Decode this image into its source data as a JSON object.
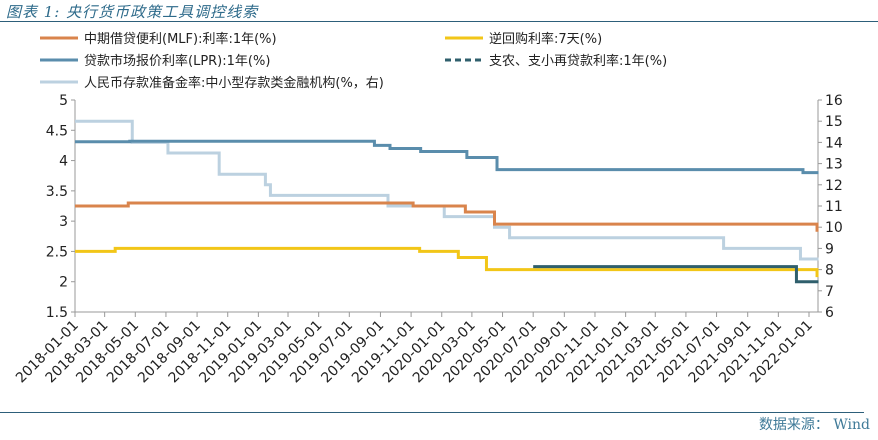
{
  "header": {
    "title": "图表 1:  央行货币政策工具调控线索"
  },
  "footer": {
    "source": "数据来源： Wind"
  },
  "chart_data": {
    "type": "line",
    "step": true,
    "title": "",
    "xlabel": "",
    "ylabel": "",
    "ylim": [
      1.5,
      5
    ],
    "y2lim": [
      6,
      16
    ],
    "yticks": [
      "1.5",
      "2",
      "2.5",
      "3",
      "3.5",
      "4",
      "4.5",
      "5"
    ],
    "y2ticks": [
      "6",
      "7",
      "8",
      "9",
      "10",
      "11",
      "12",
      "13",
      "14",
      "15",
      "16"
    ],
    "xlim": [
      "2018-01-01",
      "2022-01-20"
    ],
    "xticks": [
      "2018-01-01",
      "2018-03-01",
      "2018-05-01",
      "2018-07-01",
      "2018-09-01",
      "2018-11-01",
      "2019-01-01",
      "2019-03-01",
      "2019-05-01",
      "2019-07-01",
      "2019-09-01",
      "2019-11-01",
      "2020-01-01",
      "2020-03-01",
      "2020-05-01",
      "2020-07-01",
      "2020-09-01",
      "2020-11-01",
      "2021-01-01",
      "2021-03-01",
      "2021-05-01",
      "2021-07-01",
      "2021-09-01",
      "2021-11-01",
      "2022-01-01"
    ],
    "grid": false,
    "legend_position": "top",
    "series": [
      {
        "name": "中期借贷便利(MLF):利率:1年(%)",
        "axis": "left",
        "color": "#d9844c",
        "style": "solid",
        "points": [
          [
            "2018-01-01",
            3.25
          ],
          [
            "2018-04-17",
            3.3
          ],
          [
            "2019-11-05",
            3.25
          ],
          [
            "2020-02-17",
            3.15
          ],
          [
            "2020-04-15",
            2.95
          ],
          [
            "2022-01-17",
            2.85
          ]
        ]
      },
      {
        "name": "逆回购利率:7天(%)",
        "axis": "left",
        "color": "#f2c618",
        "style": "solid",
        "points": [
          [
            "2018-01-01",
            2.5
          ],
          [
            "2018-03-22",
            2.55
          ],
          [
            "2019-11-18",
            2.5
          ],
          [
            "2020-02-03",
            2.4
          ],
          [
            "2020-03-30",
            2.2
          ],
          [
            "2022-01-17",
            2.1
          ]
        ]
      },
      {
        "name": "贷款市场报价利率(LPR):1年(%)",
        "axis": "left",
        "color": "#5a8dac",
        "style": "solid",
        "points": [
          [
            "2018-01-01",
            4.31
          ],
          [
            "2018-04-20",
            4.32
          ],
          [
            "2019-08-20",
            4.25
          ],
          [
            "2019-09-20",
            4.2
          ],
          [
            "2019-11-20",
            4.15
          ],
          [
            "2020-02-20",
            4.05
          ],
          [
            "2020-04-20",
            3.85
          ],
          [
            "2021-12-20",
            3.8
          ]
        ]
      },
      {
        "name": "支农、支小再贷款利率:1年(%)",
        "axis": "left",
        "color": "#2f5f6c",
        "style": "dashed",
        "points": [
          [
            "2020-07-01",
            2.25
          ],
          [
            "2021-12-07",
            2.0
          ]
        ]
      },
      {
        "name": "人民币存款准备金率:中小型存款类金融机构(%，右)",
        "axis": "right",
        "color": "#bcd1e0",
        "style": "solid",
        "points": [
          [
            "2018-01-01",
            15.0
          ],
          [
            "2018-04-25",
            14.0
          ],
          [
            "2018-07-05",
            13.5
          ],
          [
            "2018-10-15",
            12.5
          ],
          [
            "2019-01-15",
            12.0
          ],
          [
            "2019-01-25",
            11.5
          ],
          [
            "2019-09-16",
            11.0
          ],
          [
            "2020-01-06",
            10.5
          ],
          [
            "2020-04-15",
            10.0
          ],
          [
            "2020-05-15",
            9.5
          ],
          [
            "2021-07-15",
            9.0
          ],
          [
            "2021-12-15",
            8.5
          ]
        ]
      }
    ]
  }
}
